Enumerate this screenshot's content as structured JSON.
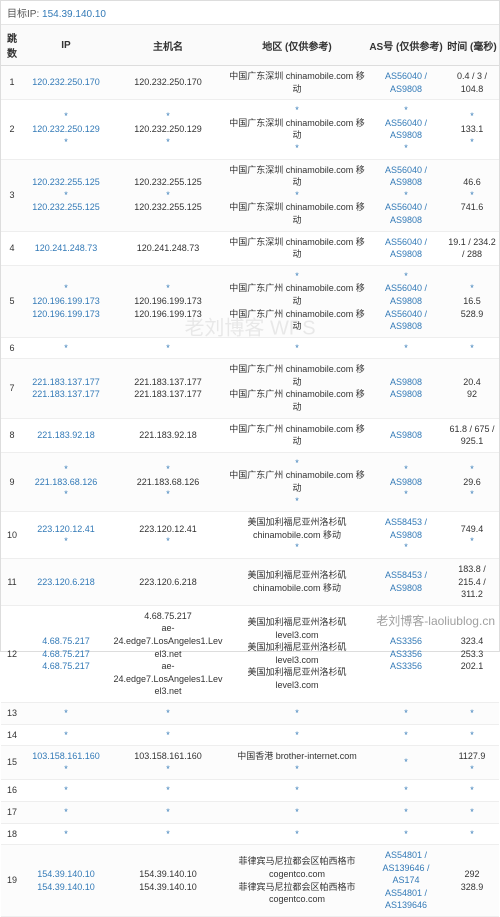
{
  "target_label": "目标IP:",
  "target_ip": "154.39.140.10",
  "columns": {
    "hop": "跳数",
    "ip": "IP",
    "host": "主机名",
    "location": "地区 (仅供参考)",
    "as": "AS号 (仅供参考)",
    "time": "时间 (毫秒)"
  },
  "watermark_text": "老刘博客 WPS",
  "footer_text": "老刘博客-laoliublog.cn",
  "rows": [
    {
      "hop": "1",
      "lines": [
        {
          "ip": "120.232.250.170",
          "host": "120.232.250.170",
          "loc": "中国广东深圳 chinamobile.com 移动",
          "as": "AS56040 / AS9808",
          "time": "0.4 / 3 / 104.8",
          "links": {
            "ip": 1,
            "as": 1
          }
        }
      ]
    },
    {
      "hop": "2",
      "lines": [
        {
          "ip": "*",
          "host": "*",
          "loc": "*",
          "as": "*",
          "time": "*"
        },
        {
          "ip": "120.232.250.129",
          "host": "120.232.250.129",
          "loc": "中国广东深圳 chinamobile.com 移动",
          "as": "AS56040 / AS9808",
          "time": "133.1",
          "links": {
            "ip": 1,
            "as": 1
          }
        },
        {
          "ip": "*",
          "host": "*",
          "loc": "*",
          "as": "*",
          "time": "*"
        }
      ]
    },
    {
      "hop": "3",
      "lines": [
        {
          "ip": "120.232.255.125",
          "host": "120.232.255.125",
          "loc": "中国广东深圳 chinamobile.com 移动",
          "as": "AS56040 / AS9808",
          "time": "46.6",
          "links": {
            "ip": 1,
            "as": 1
          }
        },
        {
          "ip": "*",
          "host": "*",
          "loc": "*",
          "as": "*",
          "time": "*"
        },
        {
          "ip": "120.232.255.125",
          "host": "120.232.255.125",
          "loc": "中国广东深圳 chinamobile.com 移动",
          "as": "AS56040 / AS9808",
          "time": "741.6",
          "links": {
            "ip": 1,
            "as": 1
          }
        }
      ]
    },
    {
      "hop": "4",
      "lines": [
        {
          "ip": "120.241.248.73",
          "host": "120.241.248.73",
          "loc": "中国广东深圳 chinamobile.com 移动",
          "as": "AS56040 / AS9808",
          "time": "19.1 / 234.2 / 288",
          "links": {
            "ip": 1,
            "as": 1
          }
        }
      ]
    },
    {
      "hop": "5",
      "lines": [
        {
          "ip": "*",
          "host": "*",
          "loc": "*",
          "as": "*",
          "time": "*"
        },
        {
          "ip": "120.196.199.173",
          "host": "120.196.199.173",
          "loc": "中国广东广州 chinamobile.com 移动",
          "as": "AS56040 / AS9808",
          "time": "16.5",
          "links": {
            "ip": 1,
            "as": 1
          }
        },
        {
          "ip": "120.196.199.173",
          "host": "120.196.199.173",
          "loc": "中国广东广州 chinamobile.com 移动",
          "as": "AS56040 / AS9808",
          "time": "528.9",
          "links": {
            "ip": 1,
            "as": 1
          }
        }
      ]
    },
    {
      "hop": "6",
      "lines": [
        {
          "ip": "*",
          "host": "*",
          "loc": "*",
          "as": "*",
          "time": "*"
        }
      ]
    },
    {
      "hop": "7",
      "lines": [
        {
          "ip": "221.183.137.177",
          "host": "221.183.137.177",
          "loc": "中国广东广州 chinamobile.com 移动",
          "as": "AS9808",
          "time": "20.4",
          "links": {
            "ip": 1,
            "as": 1
          }
        },
        {
          "ip": "221.183.137.177",
          "host": "221.183.137.177",
          "loc": "中国广东广州 chinamobile.com 移动",
          "as": "AS9808",
          "time": "92",
          "links": {
            "ip": 1,
            "as": 1
          }
        }
      ]
    },
    {
      "hop": "8",
      "lines": [
        {
          "ip": "221.183.92.18",
          "host": "221.183.92.18",
          "loc": "中国广东广州 chinamobile.com 移动",
          "as": "AS9808",
          "time": "61.8 / 675 / 925.1",
          "links": {
            "ip": 1,
            "as": 1
          }
        }
      ]
    },
    {
      "hop": "9",
      "lines": [
        {
          "ip": "*",
          "host": "*",
          "loc": "*",
          "as": "*",
          "time": "*"
        },
        {
          "ip": "221.183.68.126",
          "host": "221.183.68.126",
          "loc": "中国广东广州 chinamobile.com 移动",
          "as": "AS9808",
          "time": "29.6",
          "links": {
            "ip": 1,
            "as": 1
          }
        },
        {
          "ip": "*",
          "host": "*",
          "loc": "*",
          "as": "*",
          "time": "*"
        }
      ]
    },
    {
      "hop": "10",
      "lines": [
        {
          "ip": "223.120.12.41",
          "host": "223.120.12.41",
          "loc": "美国加利福尼亚州洛杉矶 chinamobile.com 移动",
          "as": "AS58453 / AS9808",
          "time": "749.4",
          "links": {
            "ip": 1,
            "as": 1
          }
        },
        {
          "ip": "*",
          "host": "*",
          "loc": "*",
          "as": "*",
          "time": "*"
        }
      ]
    },
    {
      "hop": "11",
      "lines": [
        {
          "ip": "223.120.6.218",
          "host": "223.120.6.218",
          "loc": "美国加利福尼亚州洛杉矶 chinamobile.com 移动",
          "as": "AS58453 / AS9808",
          "time": "183.8 / 215.4 / 311.2",
          "links": {
            "ip": 1,
            "as": 1
          }
        }
      ]
    },
    {
      "hop": "12",
      "lines": [
        {
          "ip": "4.68.75.217",
          "host": "4.68.75.217",
          "loc": "美国加利福尼亚州洛杉矶 level3.com",
          "as": "AS3356",
          "time": "323.4",
          "links": {
            "ip": 1,
            "as": 1
          }
        },
        {
          "ip": "4.68.75.217",
          "host": "ae-24.edge7.LosAngeles1.Level3.net",
          "loc": "美国加利福尼亚州洛杉矶 level3.com",
          "as": "AS3356",
          "time": "253.3",
          "links": {
            "ip": 1,
            "as": 1
          }
        },
        {
          "ip": "4.68.75.217",
          "host": "ae-24.edge7.LosAngeles1.Level3.net",
          "loc": "美国加利福尼亚州洛杉矶 level3.com",
          "as": "AS3356",
          "time": "202.1",
          "links": {
            "ip": 1,
            "as": 1
          }
        }
      ]
    },
    {
      "hop": "13",
      "lines": [
        {
          "ip": "*",
          "host": "*",
          "loc": "*",
          "as": "*",
          "time": "*"
        }
      ]
    },
    {
      "hop": "14",
      "lines": [
        {
          "ip": "*",
          "host": "*",
          "loc": "*",
          "as": "*",
          "time": "*"
        }
      ]
    },
    {
      "hop": "15",
      "lines": [
        {
          "ip": "103.158.161.160",
          "host": "103.158.161.160",
          "loc": "中国香港 brother-internet.com",
          "as": "",
          "time": "1127.9",
          "links": {
            "ip": 1
          }
        },
        {
          "ip": "*",
          "host": "*",
          "loc": "*",
          "as": "*",
          "time": "*"
        }
      ]
    },
    {
      "hop": "16",
      "lines": [
        {
          "ip": "*",
          "host": "*",
          "loc": "*",
          "as": "*",
          "time": "*"
        }
      ]
    },
    {
      "hop": "17",
      "lines": [
        {
          "ip": "*",
          "host": "*",
          "loc": "*",
          "as": "*",
          "time": "*"
        }
      ]
    },
    {
      "hop": "18",
      "lines": [
        {
          "ip": "*",
          "host": "*",
          "loc": "*",
          "as": "*",
          "time": "*"
        }
      ]
    },
    {
      "hop": "19",
      "lines": [
        {
          "ip": "154.39.140.10",
          "host": "154.39.140.10",
          "loc": "菲律宾马尼拉都会区帕西格市 cogentco.com",
          "as": "AS54801 / AS139646 / AS174",
          "time": "292",
          "links": {
            "ip": 1,
            "as": 1
          }
        },
        {
          "ip": "154.39.140.10",
          "host": "154.39.140.10",
          "loc": "菲律宾马尼拉都会区帕西格市 cogentco.com",
          "as": "AS54801 / AS139646",
          "time": "328.9",
          "links": {
            "ip": 1,
            "as": 1
          }
        }
      ]
    }
  ]
}
